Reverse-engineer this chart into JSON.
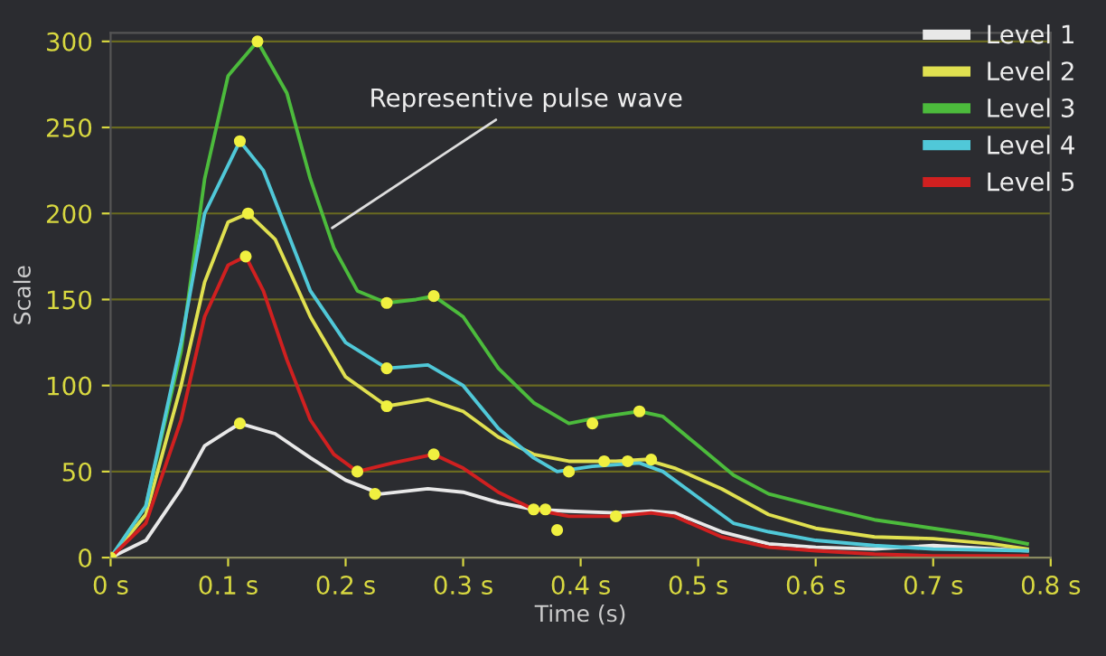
{
  "chart_data": {
    "type": "line",
    "xlabel": "Time (s)",
    "ylabel": "Scale",
    "xlim": [
      0,
      0.8
    ],
    "ylim": [
      0,
      305
    ],
    "xticks": [
      {
        "value": 0,
        "label": "0 s"
      },
      {
        "value": 0.1,
        "label": "0.1 s"
      },
      {
        "value": 0.2,
        "label": "0.2 s"
      },
      {
        "value": 0.3,
        "label": "0.3 s"
      },
      {
        "value": 0.4,
        "label": "0.4 s"
      },
      {
        "value": 0.5,
        "label": "0.5 s"
      },
      {
        "value": 0.6,
        "label": "0.6 s"
      },
      {
        "value": 0.7,
        "label": "0.7 s"
      },
      {
        "value": 0.8,
        "label": "0.8 s"
      }
    ],
    "yticks": [
      0,
      50,
      100,
      150,
      200,
      250,
      300
    ],
    "grid": "y",
    "legend": "top right",
    "marker": "none",
    "line_style": "solid",
    "annotations": [
      {
        "text": "Representive pulse wave",
        "x": 0.185,
        "y": 190
      }
    ],
    "series": [
      {
        "name": "Level 1",
        "color": "#e8e8e8",
        "x": [
          0,
          0.03,
          0.06,
          0.08,
          0.11,
          0.14,
          0.17,
          0.2,
          0.23,
          0.27,
          0.3,
          0.33,
          0.36,
          0.39,
          0.43,
          0.46,
          0.48,
          0.52,
          0.56,
          0.6,
          0.65,
          0.7,
          0.78
        ],
        "values": [
          0,
          10,
          40,
          65,
          78,
          72,
          58,
          45,
          37,
          40,
          38,
          32,
          28,
          27,
          26,
          27,
          26,
          15,
          8,
          6,
          5,
          7,
          4
        ]
      },
      {
        "name": "Level 2",
        "color": "#e0e050",
        "x": [
          0,
          0.03,
          0.06,
          0.08,
          0.1,
          0.117,
          0.14,
          0.17,
          0.2,
          0.235,
          0.27,
          0.3,
          0.33,
          0.36,
          0.39,
          0.43,
          0.455,
          0.48,
          0.52,
          0.56,
          0.6,
          0.65,
          0.7,
          0.75,
          0.78
        ],
        "values": [
          0,
          25,
          100,
          160,
          195,
          200,
          185,
          140,
          105,
          88,
          92,
          85,
          70,
          60,
          56,
          56,
          57,
          52,
          40,
          25,
          17,
          12,
          11,
          8,
          5
        ]
      },
      {
        "name": "Level 3",
        "color": "#4cbb3c",
        "x": [
          0,
          0.03,
          0.06,
          0.08,
          0.1,
          0.125,
          0.15,
          0.17,
          0.19,
          0.21,
          0.235,
          0.26,
          0.275,
          0.3,
          0.33,
          0.36,
          0.39,
          0.42,
          0.45,
          0.47,
          0.5,
          0.53,
          0.56,
          0.6,
          0.65,
          0.7,
          0.75,
          0.78
        ],
        "values": [
          0,
          30,
          120,
          220,
          280,
          300,
          270,
          220,
          180,
          155,
          148,
          150,
          152,
          140,
          110,
          90,
          78,
          82,
          85,
          82,
          65,
          48,
          37,
          30,
          22,
          17,
          12,
          8
        ]
      },
      {
        "name": "Level 4",
        "color": "#50c8d8",
        "x": [
          0,
          0.03,
          0.06,
          0.08,
          0.11,
          0.13,
          0.15,
          0.17,
          0.2,
          0.235,
          0.27,
          0.3,
          0.33,
          0.36,
          0.38,
          0.41,
          0.45,
          0.47,
          0.5,
          0.53,
          0.56,
          0.6,
          0.65,
          0.7,
          0.78
        ],
        "values": [
          0,
          30,
          125,
          200,
          242,
          225,
          190,
          155,
          125,
          110,
          112,
          100,
          75,
          58,
          50,
          53,
          55,
          50,
          35,
          20,
          15,
          10,
          7,
          5,
          4
        ]
      },
      {
        "name": "Level 5",
        "color": "#d02020",
        "x": [
          0,
          0.03,
          0.06,
          0.08,
          0.1,
          0.115,
          0.13,
          0.15,
          0.17,
          0.19,
          0.21,
          0.24,
          0.275,
          0.3,
          0.33,
          0.36,
          0.39,
          0.43,
          0.46,
          0.48,
          0.52,
          0.56,
          0.6,
          0.65,
          0.7,
          0.78
        ],
        "values": [
          0,
          20,
          80,
          140,
          170,
          175,
          155,
          115,
          80,
          60,
          50,
          55,
          60,
          52,
          38,
          28,
          24,
          24,
          26,
          24,
          12,
          6,
          4,
          2,
          1,
          1
        ]
      },
      {
        "type": "scatter",
        "marker": "circle",
        "color": "#f0f040",
        "x": [
          0,
          0.11,
          0.11,
          0.117,
          0.115,
          0.125,
          0.21,
          0.235,
          0.235,
          0.235,
          0.225,
          0.275,
          0.275,
          0.36,
          0.37,
          0.38,
          0.39,
          0.41,
          0.42,
          0.44,
          0.45,
          0.46,
          0.43
        ],
        "values": [
          0,
          78,
          242,
          200,
          175,
          300,
          50,
          148,
          110,
          88,
          37,
          152,
          60,
          28,
          28,
          16,
          50,
          78,
          56,
          56,
          85,
          57,
          24
        ]
      }
    ]
  }
}
